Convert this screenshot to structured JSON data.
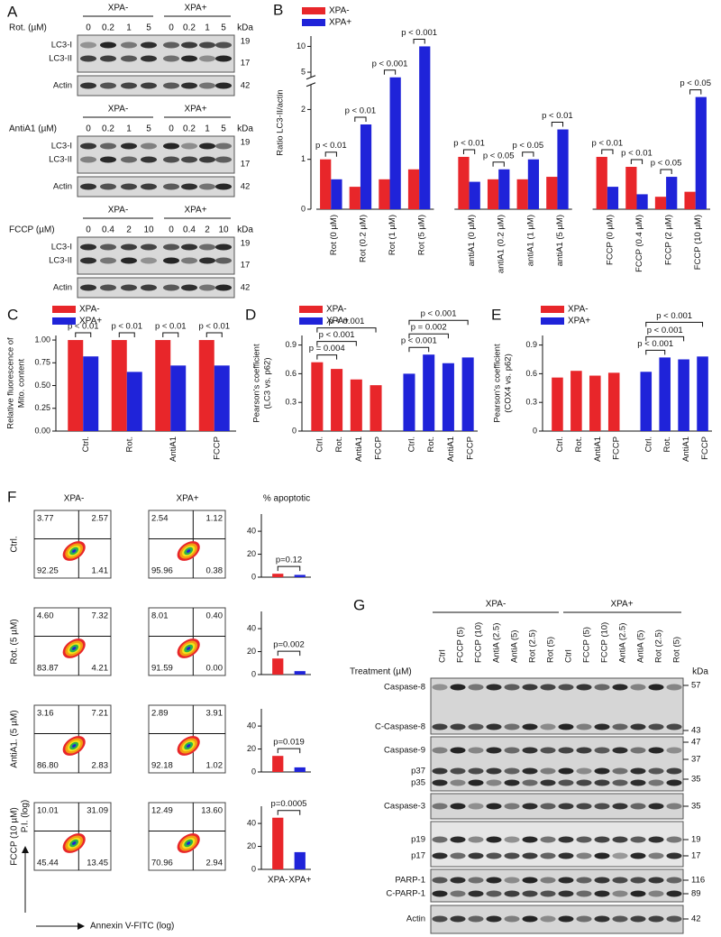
{
  "letters": [
    "A",
    "B",
    "C",
    "D",
    "E",
    "F",
    "G"
  ],
  "panel_a": [
    {
      "groups": [
        "XPA-",
        "XPA+"
      ],
      "treatment": "Rot. (µM)",
      "lanes": [
        "0",
        "0.2",
        "1",
        "5",
        "0",
        "0.2",
        "1",
        "5"
      ],
      "kda": "kDa",
      "bands": [
        "LC3-I",
        "LC3-II"
      ],
      "band_kda": [
        "19",
        "17"
      ],
      "loading": "Actin",
      "loading_kda": "42"
    },
    {
      "groups": [
        "XPA-",
        "XPA+"
      ],
      "treatment": "AntiA1 (µM)",
      "lanes": [
        "0",
        "0.2",
        "1",
        "5",
        "0",
        "0.2",
        "1",
        "5"
      ],
      "kda": "kDa",
      "bands": [
        "LC3-I",
        "LC3-II"
      ],
      "band_kda": [
        "19",
        "17"
      ],
      "loading": "Actin",
      "loading_kda": "42"
    },
    {
      "groups": [
        "XPA-",
        "XPA+"
      ],
      "treatment": "FCCP (µM)",
      "lanes": [
        "0",
        "0.4",
        "2",
        "10",
        "0",
        "0.4",
        "2",
        "10"
      ],
      "kda": "kDa",
      "bands": [
        "LC3-I",
        "LC3-II"
      ],
      "band_kda": [
        "19",
        "17"
      ],
      "loading": "Actin",
      "loading_kda": "42"
    }
  ],
  "chart_data": [
    {
      "type": "bar",
      "y_label": "Ratio LC3-II/actin",
      "categories": [
        "Rot (0 µM)",
        "Rot (0.2 µM)",
        "Rot (1 µM)",
        "Rot (5 µM)",
        "antiA1 (0 µM)",
        "antiA1 (0.2 µM)",
        "antiA1 (1 µM)",
        "antiA1 (5 µM)",
        "FCCP (0 µM)",
        "FCCP (0.4 µM)",
        "FCCP (2 µM)",
        "FCCP (10 µM)"
      ],
      "series": [
        {
          "name": "XPA-",
          "color": "#e8262a",
          "values": [
            1.0,
            0.45,
            0.6,
            0.8,
            1.05,
            0.6,
            0.6,
            0.65,
            1.05,
            0.85,
            0.25,
            0.35
          ]
        },
        {
          "name": "XPA+",
          "color": "#1f23d9",
          "values": [
            0.6,
            1.7,
            4,
            10,
            0.55,
            0.8,
            1.0,
            1.6,
            0.45,
            0.3,
            0.65,
            2.25
          ]
        }
      ],
      "ylim": [
        0,
        12
      ],
      "yticks": [
        0,
        1,
        2,
        5,
        10
      ],
      "axis_break": [
        2.5,
        4
      ],
      "legend": "top-left",
      "annotations": [
        "p < 0.01",
        "p < 0.01",
        "p < 0.001",
        "p < 0.001",
        "p < 0.01",
        "p < 0.05",
        "p < 0.05",
        "p < 0.01",
        "p < 0.01",
        "p < 0.01",
        "p < 0.05",
        "p < 0.05"
      ]
    },
    {
      "type": "bar",
      "y_label": [
        "Relative fluorescence of",
        "Mito. content"
      ],
      "categories": [
        "Ctrl.",
        "Rot.",
        "AntiA1",
        "FCCP"
      ],
      "series": [
        {
          "name": "XPA-",
          "color": "#e8262a",
          "values": [
            1.0,
            1.0,
            1.0,
            1.0
          ]
        },
        {
          "name": "XPA+",
          "color": "#1f23d9",
          "values": [
            0.82,
            0.65,
            0.72,
            0.72
          ]
        }
      ],
      "ylim": [
        0,
        1.05
      ],
      "yticks": [
        {
          "value": 0,
          "label": "0.00"
        },
        {
          "value": 0.25,
          "label": "0.25"
        },
        {
          "value": 0.5,
          "label": "0.50"
        },
        {
          "value": 0.75,
          "label": "0.75"
        },
        {
          "value": 1,
          "label": "1.00"
        }
      ],
      "legend": "top-left",
      "annotations": [
        "p < 0.01",
        "p < 0.01",
        "p < 0.01",
        "p < 0.01"
      ]
    },
    {
      "type": "bar",
      "y_label": [
        "Pearson's coefficient",
        "(LC3 vs. p62)"
      ],
      "categories": [
        "Ctrl.",
        "Rot.",
        "AntiA1",
        "FCCP",
        "Ctrl.",
        "Rot.",
        "AntiA1",
        "FCCP"
      ],
      "series": [
        {
          "name": "XPA-",
          "color": "#e8262a",
          "values": [
            0.72,
            0.65,
            0.54,
            0.48,
            null,
            null,
            null,
            null
          ]
        },
        {
          "name": "XPA+",
          "color": "#1f23d9",
          "values": [
            null,
            null,
            null,
            null,
            0.6,
            0.8,
            0.71,
            0.77
          ]
        }
      ],
      "ylim": [
        0,
        1.0
      ],
      "yticks": [
        0,
        0.3,
        0.6,
        0.9
      ],
      "legend": "top-left",
      "annotations": [
        null,
        "p = 0.004",
        "p < 0.001",
        "p < 0.001",
        null,
        "p < 0.001",
        "p = 0.002",
        "p < 0.001"
      ]
    },
    {
      "type": "bar",
      "y_label": [
        "Pearson's coefficient",
        "(COX4 vs. p62)"
      ],
      "categories": [
        "Ctrl.",
        "Rot.",
        "AntiA1",
        "FCCP",
        "Ctrl.",
        "Rot.",
        "AntiA1",
        "FCCP"
      ],
      "series": [
        {
          "name": "XPA-",
          "color": "#e8262a",
          "values": [
            0.56,
            0.63,
            0.58,
            0.61,
            null,
            null,
            null,
            null
          ]
        },
        {
          "name": "XPA+",
          "color": "#1f23d9",
          "values": [
            null,
            null,
            null,
            null,
            0.62,
            0.77,
            0.75,
            0.78
          ]
        }
      ],
      "ylim": [
        0,
        1.0
      ],
      "yticks": [
        0,
        0.3,
        0.6,
        0.9
      ],
      "legend": "top-left",
      "annotations": [
        null,
        null,
        null,
        null,
        null,
        "p < 0.001",
        "p < 0.001",
        "p < 0.001"
      ]
    },
    {
      "type": "bar",
      "categories": [
        null,
        null
      ],
      "values": [
        3,
        2
      ],
      "colors": [
        "#e8262a",
        "#1f23d9"
      ],
      "ylim": [
        0,
        55
      ],
      "yticks": [
        0,
        20,
        40
      ],
      "annotations": [
        null,
        "p=0.12"
      ]
    },
    {
      "type": "bar",
      "categories": [
        null,
        null
      ],
      "values": [
        14,
        3
      ],
      "colors": [
        "#e8262a",
        "#1f23d9"
      ],
      "ylim": [
        0,
        55
      ],
      "yticks": [
        0,
        20,
        40
      ],
      "annotations": [
        null,
        "p=0.002"
      ]
    },
    {
      "type": "bar",
      "categories": [
        null,
        null
      ],
      "values": [
        14,
        4
      ],
      "colors": [
        "#e8262a",
        "#1f23d9"
      ],
      "ylim": [
        0,
        55
      ],
      "yticks": [
        0,
        20,
        40
      ],
      "annotations": [
        null,
        "p=0.019"
      ]
    },
    {
      "type": "bar",
      "categories": [
        "XPA-",
        "XPA+"
      ],
      "values": [
        45,
        15
      ],
      "colors": [
        "#e8262a",
        "#1f23d9"
      ],
      "ylim": [
        0,
        55
      ],
      "yticks": [
        0,
        20,
        40
      ],
      "annotations": [
        null,
        "p=0.0005"
      ]
    }
  ],
  "panel_f": {
    "columns": [
      "XPA-",
      "XPA+",
      "% apoptotic"
    ],
    "rows": [
      {
        "label": "Ctrl.",
        "quadrants": [
          [
            "3.77",
            "2.57",
            "92.25",
            "1.41"
          ],
          [
            "2.54",
            "1.12",
            "95.96",
            "0.38"
          ]
        ]
      },
      {
        "label": "Rot. (5 µM)",
        "quadrants": [
          [
            "4.60",
            "7.32",
            "83.87",
            "4.21"
          ],
          [
            "8.01",
            "0.40",
            "91.59",
            "0.00"
          ]
        ]
      },
      {
        "label": "AntiA1. (5 µM)",
        "quadrants": [
          [
            "3.16",
            "7.21",
            "86.80",
            "2.83"
          ],
          [
            "2.89",
            "3.91",
            "92.18",
            "1.02"
          ]
        ]
      },
      {
        "label": "FCCP (10 µM)",
        "quadrants": [
          [
            "10.01",
            "31.09",
            "45.44",
            "13.45"
          ],
          [
            "12.49",
            "13.60",
            "70.96",
            "2.94"
          ]
        ]
      }
    ],
    "y_label": "P.I. (log)",
    "x_label": "Annexin V-FITC (log)"
  },
  "panel_g": {
    "groups": [
      "XPA-",
      "XPA+"
    ],
    "treatment": "Treatment (µM)",
    "kda": "kDa",
    "lanes": [
      "Ctrl",
      "FCCP (5)",
      "FCCP (10)",
      "AntiA (2.5)",
      "AntiA (5)",
      "Rot (2.5)",
      "Rot (5)",
      "Ctrl",
      "FCCP (5)",
      "FCCP (10)",
      "AntiA (2.5)",
      "AntiA (5)",
      "Rot (2.5)",
      "Rot (5)"
    ],
    "blots": [
      {
        "labels": [
          "Caspase-8",
          "C-Caspase-8"
        ],
        "kda": [
          "57",
          "43"
        ]
      },
      {
        "labels": [
          "Caspase-9",
          "p37",
          "p35"
        ],
        "kda": [
          "47",
          "37",
          "35"
        ]
      },
      {
        "labels": [
          "Caspase-3"
        ],
        "kda": [
          "35"
        ]
      },
      {
        "labels": [
          "p19",
          "p17"
        ],
        "kda": [
          "19",
          "17"
        ]
      },
      {
        "labels": [
          "PARP-1",
          "C-PARP-1"
        ],
        "kda": [
          "116",
          "89"
        ]
      },
      {
        "labels": [
          "Actin"
        ],
        "kda": [
          "42"
        ]
      }
    ]
  }
}
